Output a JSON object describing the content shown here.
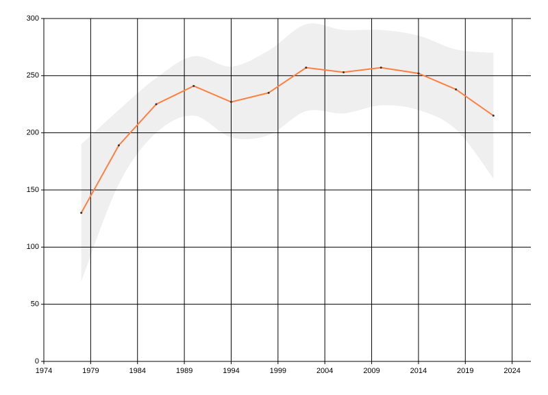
{
  "chart_data": {
    "type": "line",
    "x": [
      1978,
      1982,
      1986,
      1990,
      1994,
      1998,
      2002,
      2006,
      2010,
      2014,
      2018,
      2022
    ],
    "series": [
      {
        "color": "#ff7f3f",
        "values": [
          130,
          189,
          225,
          241,
          227,
          235,
          257,
          253,
          257,
          252,
          238,
          215
        ]
      }
    ],
    "band": {
      "color": "#efefef",
      "upper": [
        190,
        220,
        248,
        267,
        258,
        272,
        295,
        290,
        290,
        285,
        273,
        270
      ],
      "lower": [
        70,
        155,
        200,
        215,
        196,
        198,
        219,
        217,
        224,
        220,
        203,
        160
      ]
    },
    "xlim": [
      1974,
      2026
    ],
    "xticks": [
      1974,
      1979,
      1984,
      1989,
      1994,
      1999,
      2004,
      2009,
      2014,
      2019,
      2024
    ],
    "ylim": [
      0,
      300
    ],
    "yticks": [
      0,
      50,
      100,
      150,
      200,
      250,
      300
    ],
    "grid": true
  }
}
